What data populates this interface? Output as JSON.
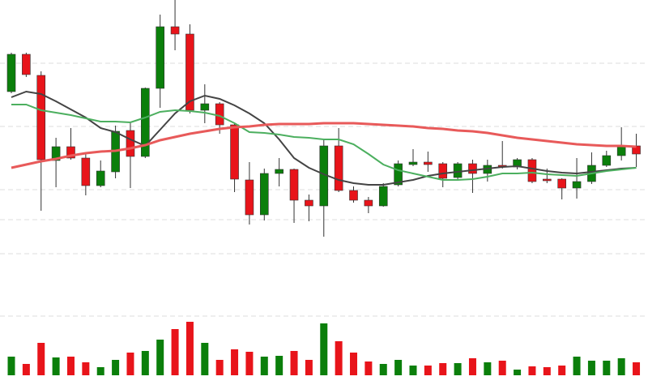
{
  "chart_data": {
    "type": "candlestick",
    "up_color": "#0b7f0b",
    "down_color": "#e8141a",
    "open": [
      200,
      246,
      220,
      115,
      132,
      118,
      84,
      101,
      152,
      120,
      204,
      280,
      271,
      177,
      185,
      159,
      91,
      48,
      99,
      104,
      66,
      59,
      133,
      78,
      66,
      59,
      85,
      110,
      113,
      111,
      94,
      111,
      99,
      109,
      107,
      116,
      92,
      92,
      81,
      89,
      109,
      121,
      133
    ],
    "high": [
      248,
      248,
      225,
      143,
      155,
      123,
      115,
      158,
      161,
      205,
      295,
      313,
      283,
      209,
      187,
      161,
      113,
      105,
      118,
      105,
      73,
      141,
      155,
      83,
      70,
      87,
      115,
      129,
      126,
      113,
      113,
      116,
      116,
      139,
      118,
      118,
      105,
      93,
      118,
      125,
      127,
      156,
      148
    ],
    "low": [
      198,
      218,
      53,
      82,
      116,
      72,
      82,
      93,
      81,
      118,
      180,
      251,
      173,
      161,
      148,
      76,
      36,
      41,
      83,
      38,
      40,
      21,
      76,
      63,
      50,
      58,
      83,
      108,
      101,
      82,
      91,
      75,
      89,
      105,
      104,
      87,
      87,
      67,
      68,
      86,
      107,
      115,
      107
    ],
    "close": [
      246,
      221,
      116,
      132,
      118,
      84,
      102,
      151,
      120,
      204,
      280,
      271,
      177,
      185,
      159,
      92,
      48,
      99,
      104,
      66,
      59,
      133,
      78,
      66,
      59,
      83,
      111,
      113,
      110,
      93,
      111,
      99,
      109,
      107,
      116,
      89,
      90,
      81,
      89,
      109,
      121,
      133,
      123
    ],
    "volume": [
      23,
      14,
      40,
      22,
      23,
      16,
      10,
      19,
      28,
      30,
      44,
      57,
      66,
      40,
      19,
      32,
      29,
      23,
      24,
      30,
      19,
      64,
      42,
      28,
      17,
      14,
      19,
      12,
      12,
      15,
      15,
      21,
      16,
      18,
      7,
      11,
      10,
      12,
      23,
      18,
      18,
      21,
      16
    ],
    "moving_averages": [
      {
        "color": "#444444",
        "values": [
          193,
          200,
          197,
          188,
          178,
          168,
          155,
          150,
          141,
          133,
          153,
          173,
          188,
          195,
          191,
          183,
          173,
          161,
          141,
          118,
          106,
          98,
          91,
          87,
          85,
          85,
          88,
          91,
          96,
          99,
          101,
          103,
          105,
          107,
          108,
          105,
          102,
          100,
          99,
          101,
          103,
          105,
          106
        ]
      },
      {
        "color": "#4caf5f",
        "values": [
          184,
          184,
          177,
          174,
          171,
          167,
          163,
          163,
          162,
          168,
          175,
          177,
          176,
          174,
          170,
          161,
          150,
          149,
          147,
          144,
          143,
          141,
          141,
          135,
          123,
          110,
          103,
          99,
          95,
          91,
          91,
          92,
          95,
          99,
          99,
          100,
          98,
          97,
          96,
          99,
          102,
          104,
          106
        ]
      },
      {
        "color": "#e85a5a",
        "values": [
          106,
          110,
          114,
          117,
          121,
          124,
          126,
          127,
          130,
          134,
          140,
          144,
          148,
          151,
          154,
          156,
          157,
          159,
          160,
          160,
          160,
          161,
          161,
          161,
          160,
          159,
          158,
          157,
          155,
          154,
          152,
          151,
          149,
          146,
          143,
          141,
          139,
          137,
          135,
          134,
          133,
          133,
          132
        ]
      }
    ],
    "ylim": [
      0,
      313
    ],
    "yticks": [
      0,
      42,
      79,
      157,
      235
    ],
    "vlim": [
      0,
      150
    ],
    "vticks": [
      73
    ],
    "grid": true
  }
}
